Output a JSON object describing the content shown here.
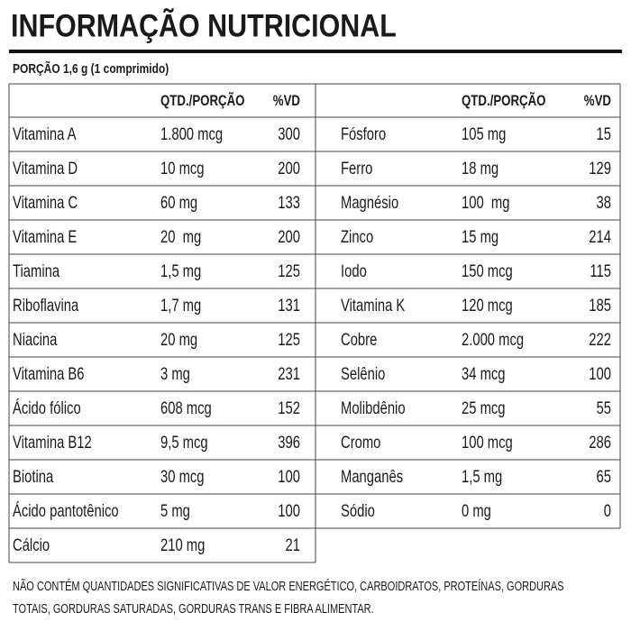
{
  "header": {
    "title": "INFORMAÇÃO NUTRICIONAL",
    "serving": "PORÇÃO 1,6 g (1 comprimido)"
  },
  "tables": [
    {
      "columns": [
        "QTD./PORÇÃO",
        "%VD"
      ],
      "rows": [
        [
          "Vitamina A",
          "1.800 mcg",
          "300"
        ],
        [
          "Vitamina D",
          "10 mcg",
          "200"
        ],
        [
          "Vitamina C",
          "60 mg",
          "133"
        ],
        [
          "Vitamina E",
          "20  mg",
          "200"
        ],
        [
          "Tiamina",
          "1,5 mg",
          "125"
        ],
        [
          "Riboflavina",
          "1,7 mg",
          "131"
        ],
        [
          "Niacina",
          "20 mg",
          "125"
        ],
        [
          "Vitamina B6",
          "3 mg",
          "231"
        ],
        [
          "Ácido fólico",
          "608 mcg",
          "152"
        ],
        [
          "Vitamina B12",
          "9,5 mcg",
          "396"
        ],
        [
          "Biotina",
          "30 mcg",
          "100"
        ],
        [
          "Ácido pantotênico",
          "5 mg",
          "100"
        ],
        [
          "Cálcio",
          "210 mg",
          "21"
        ]
      ]
    },
    {
      "columns": [
        "QTD./PORÇÃO",
        "%VD"
      ],
      "rows": [
        [
          "Fósforo",
          "105 mg",
          "15"
        ],
        [
          "Ferro",
          "18 mg",
          "129"
        ],
        [
          "Magnésio",
          "100  mg",
          "38"
        ],
        [
          "Zinco",
          "15 mg",
          "214"
        ],
        [
          "Iodo",
          "150 mcg",
          "115"
        ],
        [
          "Vitamina K",
          "120 mcg",
          "185"
        ],
        [
          "Cobre",
          "2.000 mcg",
          "222"
        ],
        [
          "Selênio",
          "34 mcg",
          "100"
        ],
        [
          "Molibdênio",
          "25 mcg",
          "55"
        ],
        [
          "Cromo",
          "100 mcg",
          "286"
        ],
        [
          "Manganês",
          "1,5 mg",
          "65"
        ],
        [
          "Sódio",
          "0 mg",
          "0"
        ]
      ]
    }
  ],
  "footer": [
    "NÃO CONTÉM QUANTIDADES SIGNIFICATIVAS DE VALOR ENERGÉTICO, CARBOIDRATOS, PROTEÍNAS, GORDURAS",
    "TOTAIS, GORDURAS SATURADAS, GORDURAS TRANS E FIBRA ALIMENTAR."
  ]
}
